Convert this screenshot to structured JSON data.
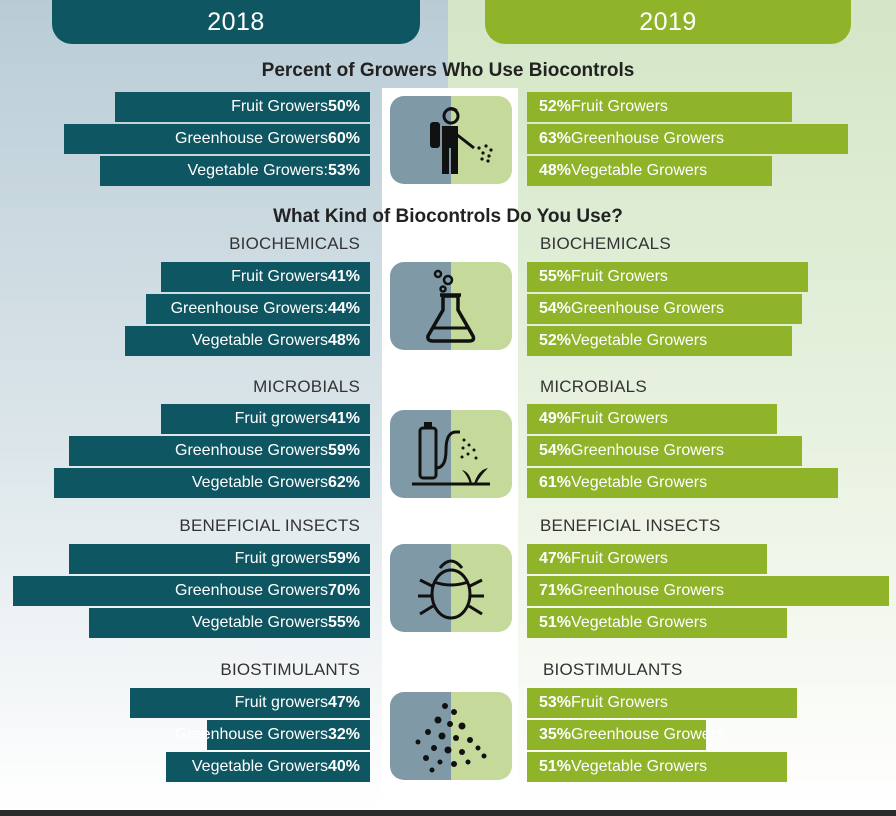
{
  "years": {
    "left": "2018",
    "right": "2019"
  },
  "headings": {
    "main": "Percent of Growers Who Use Biocontrols",
    "kind": "What Kind of Biocontrols Do You Use?"
  },
  "colors": {
    "teal": "#0f5663",
    "green": "#8fb42a",
    "icon_left": "#7f9aa6",
    "icon_right": "#c5d99a"
  },
  "icons": [
    "sprayer-worker-icon",
    "flask-icon",
    "microbial-sprayer-plant-icon",
    "beetle-icon",
    "molecule-network-icon"
  ],
  "chart_data": {
    "type": "bar",
    "unit": "%",
    "groups": [
      {
        "label_left": "",
        "label_right": "",
        "rows": [
          {
            "left_text": "Fruit Growers",
            "left_value": 50,
            "left_display": "50%",
            "right_text": "Fruit Growers",
            "right_value": 52,
            "right_display": "52%"
          },
          {
            "left_text": "Greenhouse Growers",
            "left_value": 60,
            "left_display": "60%",
            "right_text": "Greenhouse Growers",
            "right_value": 63,
            "right_display": "63%"
          },
          {
            "left_text": "Vegetable Growers:",
            "left_value": 53,
            "left_display": "53%",
            "right_text": "Vegetable Growers",
            "right_value": 48,
            "right_display": "48%"
          }
        ]
      },
      {
        "label_left": "BIOCHEMICALS",
        "label_right": "BIOCHEMICALS",
        "rows": [
          {
            "left_text": "Fruit Growers",
            "left_value": 41,
            "left_display": "41%",
            "right_text": "Fruit Growers",
            "right_value": 55,
            "right_display": "55%"
          },
          {
            "left_text": "Greenhouse Growers:",
            "left_value": 44,
            "left_display": "44%",
            "right_text": "Greenhouse Growers",
            "right_value": 54,
            "right_display": "54%"
          },
          {
            "left_text": "Vegetable Growers",
            "left_value": 48,
            "left_display": "48%",
            "right_text": "Vegetable Growers",
            "right_value": 52,
            "right_display": "52%"
          }
        ]
      },
      {
        "label_left": "MICROBIALS",
        "label_right": "MICROBIALS",
        "rows": [
          {
            "left_text": "Fruit growers",
            "left_value": 41,
            "left_display": "41%",
            "right_text": "Fruit Growers",
            "right_value": 49,
            "right_display": "49%"
          },
          {
            "left_text": "Greenhouse Growers",
            "left_value": 59,
            "left_display": "59%",
            "right_text": "Greenhouse Growers",
            "right_value": 54,
            "right_display": "54%"
          },
          {
            "left_text": "Vegetable Growers",
            "left_value": 62,
            "left_display": "62%",
            "right_text": "Vegetable Growers",
            "right_value": 61,
            "right_display": "61%"
          }
        ]
      },
      {
        "label_left": "BENEFICIAL INSECTS",
        "label_right": "BENEFICIAL INSECTS",
        "rows": [
          {
            "left_text": "Fruit growers",
            "left_value": 59,
            "left_display": "59%",
            "right_text": "Fruit Growers",
            "right_value": 47,
            "right_display": "47%"
          },
          {
            "left_text": "Greenhouse Growers",
            "left_value": 70,
            "left_display": "70%",
            "right_text": "Greenhouse Growers",
            "right_value": 71,
            "right_display": "71%"
          },
          {
            "left_text": "Vegetable Growers",
            "left_value": 55,
            "left_display": "55%",
            "right_text": "Vegetable Growers",
            "right_value": 51,
            "right_display": "51%"
          }
        ]
      },
      {
        "label_left": "BIOSTIMULANTS",
        "label_right": "BIOSTIMULANTS",
        "rows": [
          {
            "left_text": "Fruit growers",
            "left_value": 47,
            "left_display": "47%",
            "right_text": "Fruit Growers",
            "right_value": 53,
            "right_display": "53%"
          },
          {
            "left_text": "Greenhouse Growers",
            "left_value": 32,
            "left_display": "32%",
            "right_text": "Greenhouse Growers",
            "right_value": 35,
            "right_display": "35%"
          },
          {
            "left_text": "Vegetable Growers",
            "left_value": 40,
            "left_display": "40%",
            "right_text": "Vegetable Growers",
            "right_value": 51,
            "right_display": "51%"
          }
        ]
      }
    ]
  }
}
